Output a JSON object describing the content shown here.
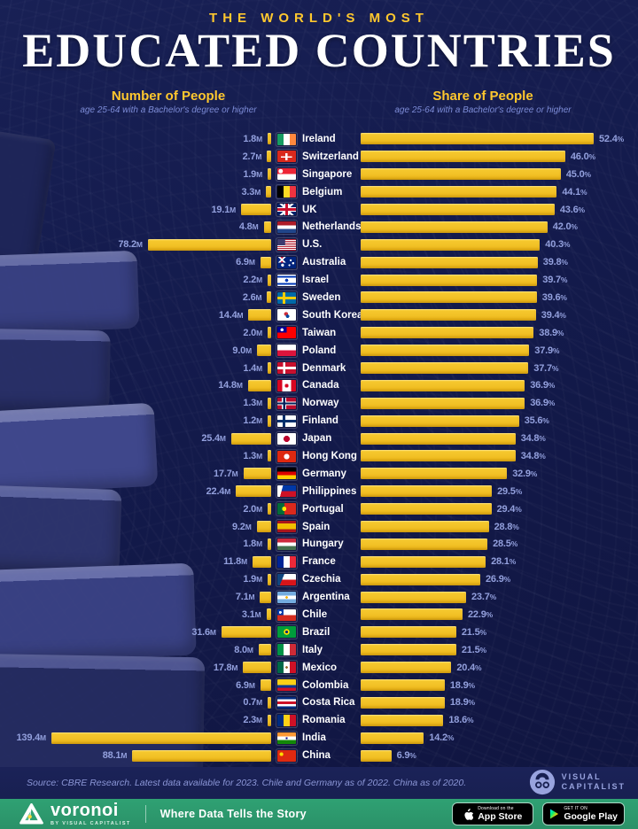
{
  "header": {
    "kicker": "THE WORLD'S MOST",
    "title": "EDUCATED COUNTRIES",
    "left_col": {
      "title": "Number of People",
      "subtitle": "age 25-64 with a Bachelor's degree or higher"
    },
    "right_col": {
      "title": "Share of People",
      "subtitle": "age 25-64 with a Bachelor's degree or higher"
    }
  },
  "units": {
    "number": "M",
    "share": "%"
  },
  "colors": {
    "bar": "#F2C126",
    "background": "#131A4B",
    "accent_yellow": "#FFC82E",
    "label_blue": "#93A0DD",
    "country_text": "#FFFFFF",
    "footer_green": "#2FA173"
  },
  "icons": {
    "voronoi_logo": "voronoi-triangle-logo",
    "visual_capitalist_logo": "vc-circle-logo",
    "apple": "apple-icon",
    "google_play": "google-play-triangle-icon"
  },
  "chart_data": {
    "type": "bar",
    "title": "The World's Most Educated Countries",
    "subtitle": "age 25-64 with a Bachelor's degree or higher",
    "orientation": "horizontal-dual",
    "categories": [
      "Ireland",
      "Switzerland",
      "Singapore",
      "Belgium",
      "UK",
      "Netherlands",
      "U.S.",
      "Australia",
      "Israel",
      "Sweden",
      "South Korea",
      "Taiwan",
      "Poland",
      "Denmark",
      "Canada",
      "Norway",
      "Finland",
      "Japan",
      "Hong Kong",
      "Germany",
      "Philippines",
      "Portugal",
      "Spain",
      "Hungary",
      "France",
      "Czechia",
      "Argentina",
      "Chile",
      "Brazil",
      "Italy",
      "Mexico",
      "Colombia",
      "Costa Rica",
      "Romania",
      "India",
      "China"
    ],
    "series": [
      {
        "name": "Number of People (millions)",
        "values": [
          1.8,
          2.7,
          1.9,
          3.3,
          19.1,
          4.8,
          78.2,
          6.9,
          2.2,
          2.6,
          14.4,
          2.0,
          9.0,
          1.4,
          14.8,
          1.3,
          1.2,
          25.4,
          1.3,
          17.7,
          22.4,
          2.0,
          9.2,
          1.8,
          11.8,
          1.9,
          7.1,
          3.1,
          31.6,
          8.0,
          17.8,
          6.9,
          0.7,
          2.3,
          139.4,
          88.1
        ]
      },
      {
        "name": "Share of People (%)",
        "values": [
          52.4,
          46.0,
          45.0,
          44.1,
          43.6,
          42.0,
          40.3,
          39.8,
          39.7,
          39.6,
          39.4,
          38.9,
          37.9,
          37.7,
          36.9,
          36.9,
          35.6,
          34.8,
          34.8,
          32.9,
          29.5,
          29.4,
          28.8,
          28.5,
          28.1,
          26.9,
          23.7,
          22.9,
          21.5,
          21.5,
          20.4,
          18.9,
          18.9,
          18.6,
          14.2,
          6.9
        ]
      }
    ],
    "legend_position": "column-headers",
    "grid": false
  },
  "countries": [
    {
      "name": "Ireland",
      "number": "1.8",
      "share": "52.4",
      "flag": "linear-gradient(90deg,#169b62 0 33%,#ffffff 33% 66%,#ff883e 66%)"
    },
    {
      "name": "Switzerland",
      "number": "2.7",
      "share": "46.0",
      "flag": "linear-gradient(90deg,rgba(0,0,0,0) 40%,#ffffff 40% 60%,rgba(0,0,0,0) 60%) center/60% 64% no-repeat,linear-gradient(180deg,rgba(0,0,0,0) 40%,#ffffff 40% 60%,rgba(0,0,0,0) 60%) center/60% 64% no-repeat,#da291c"
    },
    {
      "name": "Singapore",
      "number": "1.9",
      "share": "45.0",
      "flag": "radial-gradient(circle at 18% 25%,#ffffff 0 12%,rgba(0,0,0,0) 13%),linear-gradient(180deg,#ee2536 0 50%,#ffffff 50%)"
    },
    {
      "name": "Belgium",
      "number": "3.3",
      "share": "44.1",
      "flag": "linear-gradient(90deg,#000000 0 33%,#fdda24 33% 66%,#ef3340 66%)"
    },
    {
      "name": "UK",
      "number": "19.1",
      "share": "43.6",
      "flag": "linear-gradient(90deg,rgba(0,0,0,0) 42%,#c8102e 42% 58%,rgba(0,0,0,0) 58%),linear-gradient(180deg,rgba(0,0,0,0) 38%,#c8102e 38% 62%,rgba(0,0,0,0) 62%),linear-gradient(90deg,rgba(0,0,0,0) 36%,#ffffff 36% 64%,rgba(0,0,0,0) 64%),linear-gradient(180deg,rgba(0,0,0,0) 30%,#ffffff 30% 70%,rgba(0,0,0,0) 70%),linear-gradient(45deg,rgba(0,0,0,0) 45%,#ffffff 45% 55%,rgba(0,0,0,0) 55%),linear-gradient(135deg,rgba(0,0,0,0) 45%,#ffffff 45% 55%,rgba(0,0,0,0) 55%),#012169"
    },
    {
      "name": "Netherlands",
      "number": "4.8",
      "share": "42.0",
      "flag": "linear-gradient(180deg,#ae1c28 0 33%,#ffffff 33% 66%,#21468b 66%)"
    },
    {
      "name": "U.S.",
      "number": "78.2",
      "share": "40.3",
      "flag": "linear-gradient(#3c3b6e,#3c3b6e) left top/42% 54% no-repeat,repeating-linear-gradient(180deg,#b22234 0 7.7%,#ffffff 7.7% 15.4%)"
    },
    {
      "name": "Australia",
      "number": "6.9",
      "share": "39.8",
      "flag": "radial-gradient(circle at 72% 30%,#ffffff 0 6%,rgba(0,0,0,0) 7%),radial-gradient(circle at 85% 55%,#ffffff 0 6%,rgba(0,0,0,0) 7%),radial-gradient(circle at 65% 72%,#ffffff 0 6%,rgba(0,0,0,0) 7%),radial-gradient(circle at 28% 72%,#ffffff 0 9%,rgba(0,0,0,0) 10%),linear-gradient(45deg,rgba(0,0,0,0) 44%,#ffffff 44% 56%,rgba(0,0,0,0) 56%) left top/50% 50% no-repeat,linear-gradient(135deg,rgba(0,0,0,0) 44%,#ffffff 44% 56%,rgba(0,0,0,0) 56%) left top/50% 50% no-repeat,linear-gradient(90deg,rgba(0,0,0,0) 38%,#c8102e 38% 62%,rgba(0,0,0,0) 62%) left top/50% 50% no-repeat,#00247d"
    },
    {
      "name": "Israel",
      "number": "2.2",
      "share": "39.7",
      "flag": "radial-gradient(circle at 50% 50%,#0038b8 0 14%,rgba(0,0,0,0) 15%),linear-gradient(180deg,#ffffff 0 12%,#0038b8 12% 26%,#ffffff 26% 74%,#0038b8 74% 88%,#ffffff 88%)"
    },
    {
      "name": "Sweden",
      "number": "2.6",
      "share": "39.6",
      "flag": "linear-gradient(90deg,rgba(0,0,0,0) 28%,#fecc02 28% 44%,rgba(0,0,0,0) 44%),linear-gradient(180deg,rgba(0,0,0,0) 38%,#fecc02 38% 62%,rgba(0,0,0,0) 62%),#006aa7"
    },
    {
      "name": "South Korea",
      "number": "14.4",
      "share": "39.4",
      "flag": "radial-gradient(circle at 55% 62%,#0047a0 0 13%,rgba(0,0,0,0) 14%),radial-gradient(circle at 47% 42%,#cd2e3a 0 16%,rgba(0,0,0,0) 17%),#ffffff"
    },
    {
      "name": "Taiwan",
      "number": "2.0",
      "share": "38.9",
      "flag": "radial-gradient(circle at 25% 26%,#ffffff 0 9%,rgba(0,0,0,0) 10%),linear-gradient(#000095,#000095) left top/50% 50% no-repeat,#fe0000"
    },
    {
      "name": "Poland",
      "number": "9.0",
      "share": "37.9",
      "flag": "linear-gradient(180deg,#ffffff 0 50%,#dc143c 50%)"
    },
    {
      "name": "Denmark",
      "number": "1.4",
      "share": "37.7",
      "flag": "linear-gradient(90deg,rgba(0,0,0,0) 30%,#ffffff 30% 44%,rgba(0,0,0,0) 44%),linear-gradient(180deg,rgba(0,0,0,0) 40%,#ffffff 40% 60%,rgba(0,0,0,0) 60%),#c8102e"
    },
    {
      "name": "Canada",
      "number": "14.8",
      "share": "36.9",
      "flag": "radial-gradient(circle at 50% 50%,#d80621 0 17%,rgba(0,0,0,0) 18%),linear-gradient(90deg,#d80621 0 27%,#ffffff 27% 73%,#d80621 73%)"
    },
    {
      "name": "Norway",
      "number": "1.3",
      "share": "36.9",
      "flag": "linear-gradient(90deg,rgba(0,0,0,0) 30%,#00205b 30% 42%,rgba(0,0,0,0) 42%),linear-gradient(180deg,rgba(0,0,0,0) 42%,#00205b 42% 58%,rgba(0,0,0,0) 58%),linear-gradient(90deg,rgba(0,0,0,0) 25%,#ffffff 25% 47%,rgba(0,0,0,0) 47%),linear-gradient(180deg,rgba(0,0,0,0) 34%,#ffffff 34% 66%,rgba(0,0,0,0) 66%),#ba0c2f"
    },
    {
      "name": "Finland",
      "number": "1.2",
      "share": "35.6",
      "flag": "linear-gradient(90deg,rgba(0,0,0,0) 28%,#002f6c 28% 44%,rgba(0,0,0,0) 44%),linear-gradient(180deg,rgba(0,0,0,0) 38%,#002f6c 38% 62%,rgba(0,0,0,0) 62%),#ffffff"
    },
    {
      "name": "Japan",
      "number": "25.4",
      "share": "34.8",
      "flag": "radial-gradient(circle at 50% 50%,#bc002d 0 28%,rgba(0,0,0,0) 29%),#ffffff"
    },
    {
      "name": "Hong Kong",
      "number": "1.3",
      "share": "34.8",
      "flag": "radial-gradient(circle at 50% 50%,#ffffff 0 24%,rgba(0,0,0,0) 25%),#de2910"
    },
    {
      "name": "Germany",
      "number": "17.7",
      "share": "32.9",
      "flag": "linear-gradient(180deg,#000000 0 33%,#dd0000 33% 66%,#ffce00 66%)"
    },
    {
      "name": "Philippines",
      "number": "22.4",
      "share": "29.5",
      "flag": "linear-gradient(105deg,#ffffff 0 26%,rgba(0,0,0,0) 26.5%),linear-gradient(180deg,#0038a8 0 50%,#ce1126 50%)"
    },
    {
      "name": "Portugal",
      "number": "2.0",
      "share": "29.4",
      "flag": "radial-gradient(circle at 37% 50%,#ffe900 0 16%,rgba(0,0,0,0) 17%),linear-gradient(90deg,#046a38 0 37%,#da291c 37%)"
    },
    {
      "name": "Spain",
      "number": "9.2",
      "share": "28.8",
      "flag": "linear-gradient(180deg,#aa151b 0 25%,#f1bf00 25% 75%,#aa151b 75%)"
    },
    {
      "name": "Hungary",
      "number": "1.8",
      "share": "28.5",
      "flag": "linear-gradient(180deg,#cd2a3e 0 33%,#ffffff 33% 66%,#436f4d 66%)"
    },
    {
      "name": "France",
      "number": "11.8",
      "share": "28.1",
      "flag": "linear-gradient(90deg,#002395 0 33%,#ffffff 33% 66%,#ed2939 66%)"
    },
    {
      "name": "Czechia",
      "number": "1.9",
      "share": "26.9",
      "flag": "linear-gradient(112deg,#11457e 0 30%,rgba(0,0,0,0) 30.5%),linear-gradient(180deg,#ffffff 0 50%,#d7141a 50%)"
    },
    {
      "name": "Argentina",
      "number": "7.1",
      "share": "23.7",
      "flag": "radial-gradient(circle at 50% 50%,#f6b40e 0 11%,rgba(0,0,0,0) 12%),linear-gradient(180deg,#74acdf 0 33%,#ffffff 33% 66%,#74acdf 66%)"
    },
    {
      "name": "Chile",
      "number": "3.1",
      "share": "22.9",
      "flag": "radial-gradient(circle at 16% 26%,#ffffff 0 7%,rgba(0,0,0,0) 8%),linear-gradient(#0039a6,#0039a6) left top/33% 50% no-repeat,linear-gradient(180deg,#ffffff 0 50%,#d52b1e 50%)"
    },
    {
      "name": "Brazil",
      "number": "31.6",
      "share": "21.5",
      "flag": "radial-gradient(circle at 50% 50%,#002776 0 13%,rgba(0,0,0,0) 14%),radial-gradient(circle at 50% 50%,#ffdf00 0 26%,rgba(0,0,0,0) 27%),#009c3b"
    },
    {
      "name": "Italy",
      "number": "8.0",
      "share": "21.5",
      "flag": "linear-gradient(90deg,#009246 0 33%,#ffffff 33% 66%,#ce2b37 66%)"
    },
    {
      "name": "Mexico",
      "number": "17.8",
      "share": "20.4",
      "flag": "radial-gradient(circle at 50% 50%,#9c6b30 0 11%,rgba(0,0,0,0) 12%),linear-gradient(90deg,#006847 0 33%,#ffffff 33% 66%,#ce1126 66%)"
    },
    {
      "name": "Colombia",
      "number": "6.9",
      "share": "18.9",
      "flag": "linear-gradient(180deg,#fcd116 0 50%,#003893 50% 75%,#ce1126 75%)"
    },
    {
      "name": "Costa Rica",
      "number": "0.7",
      "share": "18.9",
      "flag": "linear-gradient(180deg,#002b7f 0 18%,#ffffff 18% 38%,#ce1126 38% 62%,#ffffff 62% 82%,#002b7f 82%)"
    },
    {
      "name": "Romania",
      "number": "2.3",
      "share": "18.6",
      "flag": "linear-gradient(90deg,#002b7f 0 33%,#fcd116 33% 66%,#ce1126 66%)"
    },
    {
      "name": "India",
      "number": "139.4",
      "share": "14.2",
      "flag": "radial-gradient(circle at 50% 50%,#000080 0 9%,rgba(0,0,0,0) 10%),linear-gradient(180deg,#ff9933 0 33%,#ffffff 33% 66%,#138808 66%)"
    },
    {
      "name": "China",
      "number": "88.1",
      "share": "6.9",
      "flag": "radial-gradient(circle at 22% 35%,#ffde00 0 11%,rgba(0,0,0,0) 12%),#de2910"
    }
  ],
  "source": "Source: CBRE Research. Latest data available for 2023. Chile and Germany as of 2022. China as of 2020.",
  "branding": {
    "vc_line1": "VISUAL",
    "vc_line2": "CAPITALIST",
    "voronoi": "voronoi",
    "voronoi_sub": "BY VISUAL CAPITALIST",
    "tagline": "Where Data Tells the Story",
    "appstore_top": "Download on the",
    "appstore": "App Store",
    "gplay_top": "GET IT ON",
    "gplay": "Google Play"
  }
}
